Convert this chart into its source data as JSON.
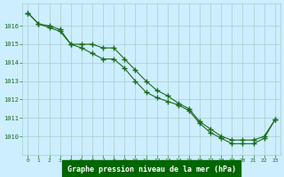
{
  "title": "Graphe pression niveau de la mer (hPa)",
  "xlabel_hours": [
    0,
    1,
    2,
    3,
    4,
    5,
    6,
    7,
    8,
    9,
    10,
    11,
    12,
    13,
    14,
    15,
    16,
    17,
    18,
    19,
    20,
    21,
    22,
    23
  ],
  "line1": [
    1016.7,
    1016.1,
    1016.0,
    1015.8,
    1015.0,
    1015.0,
    1015.0,
    1014.8,
    1014.8,
    1014.2,
    1013.6,
    1013.0,
    1012.5,
    1012.2,
    1011.8,
    1011.5,
    1010.8,
    1010.4,
    1010.0,
    1009.8,
    1009.8,
    1009.8,
    1010.0,
    1010.9
  ],
  "line2": [
    1016.7,
    1016.1,
    1015.9,
    1015.7,
    1015.0,
    1014.8,
    1014.5,
    1014.2,
    1014.2,
    1013.7,
    1013.0,
    1012.4,
    1012.1,
    1011.9,
    1011.7,
    1011.4,
    1010.7,
    1010.2,
    1009.9,
    1009.6,
    1009.6,
    1009.6,
    1009.9,
    1010.9
  ],
  "ylim": [
    1009.0,
    1017.2
  ],
  "yticks": [
    1010,
    1011,
    1012,
    1013,
    1014,
    1015,
    1016
  ],
  "line_color": "#1a6b1a",
  "marker_color": "#1a6b1a",
  "bg_color": "#cceeff",
  "grid_color": "#aacccc",
  "title_color": "#1a6b1a",
  "title_bg": "#006600"
}
